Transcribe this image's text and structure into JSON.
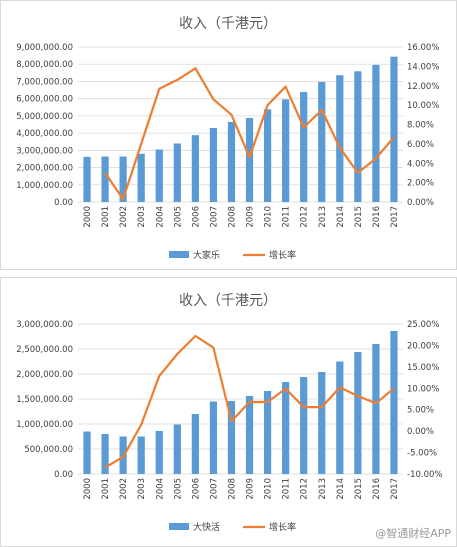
{
  "watermark": "@智通财经APP",
  "colors": {
    "bar": "#5b9bd5",
    "line": "#ed7d31",
    "grid": "#d9d9d9",
    "axis_text": "#404040"
  },
  "chart_data": [
    {
      "type": "bar",
      "title": "收入（千港元）",
      "categories": [
        "2000",
        "2001",
        "2002",
        "2003",
        "2004",
        "2005",
        "2006",
        "2007",
        "2008",
        "2009",
        "2010",
        "2011",
        "2012",
        "2013",
        "2014",
        "2015",
        "2016",
        "2017"
      ],
      "series": [
        {
          "name": "大家乐",
          "type": "bar",
          "axis": "left",
          "values": [
            2620000,
            2640000,
            2640000,
            2800000,
            3050000,
            3400000,
            3880000,
            4300000,
            4650000,
            4880000,
            5380000,
            5960000,
            6390000,
            6970000,
            7360000,
            7590000,
            7960000,
            8440000
          ]
        },
        {
          "name": "增长率",
          "type": "line",
          "axis": "right",
          "values": [
            null,
            3.0,
            0.3,
            null,
            11.7,
            12.6,
            13.8,
            10.6,
            9.0,
            4.6,
            10.0,
            11.9,
            7.7,
            9.5,
            5.6,
            3.0,
            4.5,
            6.7
          ]
        }
      ],
      "y_left": {
        "ylim": [
          0,
          9000000
        ],
        "step": 1000000,
        "ticks": [
          "0.00",
          "1,000,000.00",
          "2,000,000.00",
          "3,000,000.00",
          "4,000,000.00",
          "5,000,000.00",
          "6,000,000.00",
          "7,000,000.00",
          "8,000,000.00",
          "9,000,000.00"
        ]
      },
      "y_right": {
        "ylim": [
          0,
          16
        ],
        "step": 2,
        "ticks": [
          "0.00%",
          "2.00%",
          "4.00%",
          "6.00%",
          "8.00%",
          "10.00%",
          "12.00%",
          "14.00%",
          "16.00%"
        ]
      },
      "grid": true,
      "legend": "bottom"
    },
    {
      "type": "bar",
      "title": "收入（千港元）",
      "categories": [
        "2000",
        "2001",
        "2002",
        "2003",
        "2004",
        "2005",
        "2006",
        "2007",
        "2008",
        "2009",
        "2010",
        "2011",
        "2012",
        "2013",
        "2014",
        "2015",
        "2016",
        "2017"
      ],
      "series": [
        {
          "name": "大快活",
          "type": "bar",
          "axis": "left",
          "values": [
            850000,
            800000,
            750000,
            750000,
            860000,
            990000,
            1200000,
            1450000,
            1460000,
            1560000,
            1660000,
            1840000,
            1940000,
            2040000,
            2250000,
            2440000,
            2600000,
            2860000
          ]
        },
        {
          "name": "增长率",
          "type": "line",
          "axis": "right",
          "values": [
            null,
            -8.5,
            -6.0,
            1.5,
            12.9,
            18.0,
            22.2,
            19.5,
            2.3,
            6.8,
            6.8,
            9.9,
            5.6,
            5.6,
            10.2,
            8.2,
            6.5,
            10.0
          ]
        }
      ],
      "y_left": {
        "ylim": [
          0,
          3000000
        ],
        "step": 500000,
        "ticks": [
          "0.00",
          "500,000.00",
          "1,000,000.00",
          "1,500,000.00",
          "2,000,000.00",
          "2,500,000.00",
          "3,000,000.00"
        ]
      },
      "y_right": {
        "ylim": [
          -10,
          25
        ],
        "step": 5,
        "ticks": [
          "-10.00%",
          "-5.00%",
          "0.00%",
          "5.00%",
          "10.00%",
          "15.00%",
          "20.00%",
          "25.00%"
        ]
      },
      "grid": true,
      "legend": "bottom"
    }
  ]
}
